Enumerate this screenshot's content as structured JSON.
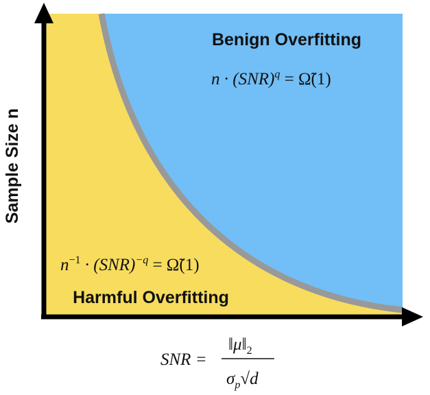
{
  "labels": {
    "benign": "Benign Overfitting",
    "harmful": "Harmful Overfitting",
    "y_axis": "Sample Size n"
  },
  "benign_condition": {
    "base": "n · (SNR)",
    "exponent": "q",
    "rest": " = Ω̃(1)"
  },
  "harmful_condition": {
    "base": "n",
    "exponent_1": "−1",
    "middle": " · (SNR)",
    "exponent_2": "−q",
    "rest": " = Ω̃(1)"
  },
  "snr_definition": {
    "lhs": "SNR =",
    "numerator": "‖μ‖",
    "numerator_sub": "2",
    "denominator": "σ",
    "denominator_sub": "p",
    "root": "√d"
  }
}
